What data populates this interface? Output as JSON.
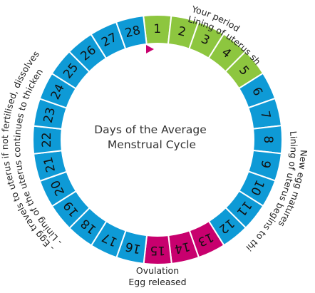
{
  "colors": {
    "period": "#8dc63f",
    "ovulation": "#c8006e",
    "normal": "#0e9ad6",
    "stroke": "#ffffff",
    "marker": "#c8006e"
  },
  "diagram": {
    "center_title": [
      "Days of the Average",
      "Menstrual Cycle"
    ],
    "days": [
      {
        "n": "1",
        "phase": "period"
      },
      {
        "n": "2",
        "phase": "period"
      },
      {
        "n": "3",
        "phase": "period"
      },
      {
        "n": "4",
        "phase": "period"
      },
      {
        "n": "5",
        "phase": "period"
      },
      {
        "n": "6",
        "phase": "normal"
      },
      {
        "n": "7",
        "phase": "normal"
      },
      {
        "n": "8",
        "phase": "normal"
      },
      {
        "n": "9",
        "phase": "normal"
      },
      {
        "n": "10",
        "phase": "normal"
      },
      {
        "n": "11",
        "phase": "normal"
      },
      {
        "n": "12",
        "phase": "normal"
      },
      {
        "n": "13",
        "phase": "ovulation"
      },
      {
        "n": "14",
        "phase": "ovulation"
      },
      {
        "n": "15",
        "phase": "ovulation"
      },
      {
        "n": "16",
        "phase": "normal"
      },
      {
        "n": "17",
        "phase": "normal"
      },
      {
        "n": "18",
        "phase": "normal"
      },
      {
        "n": "19",
        "phase": "normal"
      },
      {
        "n": "20",
        "phase": "normal"
      },
      {
        "n": "21",
        "phase": "normal"
      },
      {
        "n": "22",
        "phase": "normal"
      },
      {
        "n": "23",
        "phase": "normal"
      },
      {
        "n": "24",
        "phase": "normal"
      },
      {
        "n": "25",
        "phase": "normal"
      },
      {
        "n": "26",
        "phase": "normal"
      },
      {
        "n": "27",
        "phase": "normal"
      },
      {
        "n": "28",
        "phase": "normal"
      }
    ],
    "arc_labels": {
      "period": [
        "Your period",
        "Lining of uterus sheds"
      ],
      "egg_matures": [
        "New egg matures",
        "Lining of uterus begins to thicken"
      ],
      "egg_travels": [
        "- Egg travels to uterus if not fertilised, dissolves",
        "- Lining of the uterus continues to thicken"
      ]
    },
    "ovulation_label": [
      "Ovulation",
      "Egg released"
    ]
  }
}
